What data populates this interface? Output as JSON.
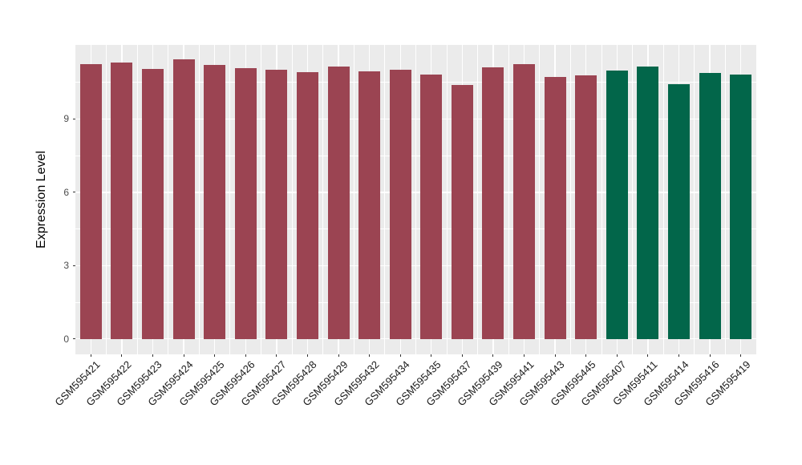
{
  "chart_data": {
    "type": "bar",
    "title": "",
    "xlabel": "",
    "ylabel": "Expression Level",
    "categories": [
      "GSM595421",
      "GSM595422",
      "GSM595423",
      "GSM595424",
      "GSM595425",
      "GSM595426",
      "GSM595427",
      "GSM595428",
      "GSM595429",
      "GSM595432",
      "GSM595434",
      "GSM595435",
      "GSM595437",
      "GSM595439",
      "GSM595441",
      "GSM595443",
      "GSM595445",
      "GSM595407",
      "GSM595411",
      "GSM595414",
      "GSM595416",
      "GSM595419"
    ],
    "values": [
      11.24,
      11.31,
      11.06,
      11.43,
      11.21,
      11.09,
      11.02,
      10.91,
      11.15,
      10.96,
      11.0,
      10.83,
      10.38,
      11.1,
      11.25,
      10.72,
      10.8,
      10.97,
      11.13,
      10.41,
      10.89,
      10.83
    ],
    "bar_groups": [
      "group1",
      "group1",
      "group1",
      "group1",
      "group1",
      "group1",
      "group1",
      "group1",
      "group1",
      "group1",
      "group1",
      "group1",
      "group1",
      "group1",
      "group1",
      "group1",
      "group1",
      "group2",
      "group2",
      "group2",
      "group2",
      "group2"
    ],
    "group_colors": {
      "group1": "#9B4452",
      "group2": "#02664A"
    },
    "ylim": [
      -0.63,
      12.03
    ],
    "yticks": [
      0,
      3,
      6,
      9
    ],
    "ytick_labels": [
      "0",
      "3",
      "6",
      "9"
    ],
    "yticks_minor": [
      1.5,
      4.5,
      7.5,
      10.5
    ],
    "grid": "on",
    "legend_position": "none",
    "panel_background": "#EBEBEB",
    "grid_color": "#FFFFFF",
    "tick_color": "#333333",
    "axis_text_color": "#4d4d4d",
    "x_label_angle": 45
  }
}
